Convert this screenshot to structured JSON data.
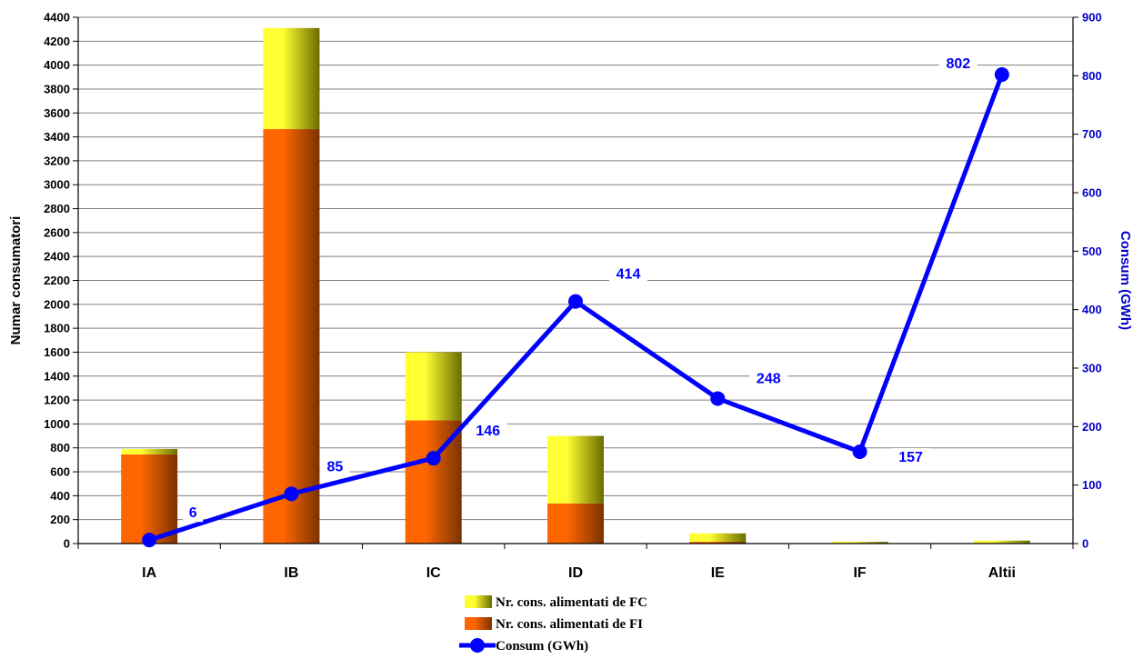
{
  "chart_data": {
    "type": "bar",
    "stacked": true,
    "categories": [
      "IA",
      "IB",
      "IC",
      "ID",
      "IE",
      "IF",
      "Altii"
    ],
    "series": [
      {
        "name": "Nr. cons. alimentati de FI",
        "type": "bar",
        "axis": "left",
        "values": [
          745,
          3465,
          1030,
          335,
          15,
          5,
          5
        ]
      },
      {
        "name": "Nr. cons. alimentati de FC",
        "type": "bar",
        "axis": "left",
        "values": [
          45,
          845,
          570,
          565,
          70,
          10,
          20
        ]
      },
      {
        "name": "Consum (GWh)",
        "type": "line",
        "axis": "right",
        "values": [
          6,
          85,
          146,
          414,
          248,
          157,
          802
        ]
      }
    ],
    "data_labels": [
      "6",
      "85",
      "146",
      "414",
      "248",
      "157",
      "802"
    ],
    "ylabel": "Numar consumatori",
    "y2label": "Consum (GWh)",
    "ylim": [
      0,
      4400
    ],
    "y2lim": [
      0,
      900
    ],
    "yticks": [
      "0",
      "200",
      "400",
      "600",
      "800",
      "1000",
      "1200",
      "1400",
      "1600",
      "1800",
      "2000",
      "2200",
      "2400",
      "2600",
      "2800",
      "3000",
      "3200",
      "3400",
      "3600",
      "3800",
      "4000",
      "4200",
      "4400"
    ],
    "y2ticks": [
      "0",
      "100",
      "200",
      "300",
      "400",
      "500",
      "600",
      "700",
      "800",
      "900"
    ],
    "grid": true,
    "legend_position": "bottom-center",
    "legend": [
      {
        "label": "Nr. cons. alimentati de FC",
        "series": 1
      },
      {
        "label": "Nr. cons. alimentati de FI",
        "series": 0
      },
      {
        "label": "Consum (GWh)",
        "series": 2
      }
    ],
    "colors": {
      "fi_bar": "#ff6600",
      "fi_bar_dark": "#7a3300",
      "fc_bar": "#ffff33",
      "fc_bar_dark": "#6b6b00",
      "line": "#0000ff",
      "right_axis_text": "#0000cc",
      "grid": "#808080"
    }
  }
}
